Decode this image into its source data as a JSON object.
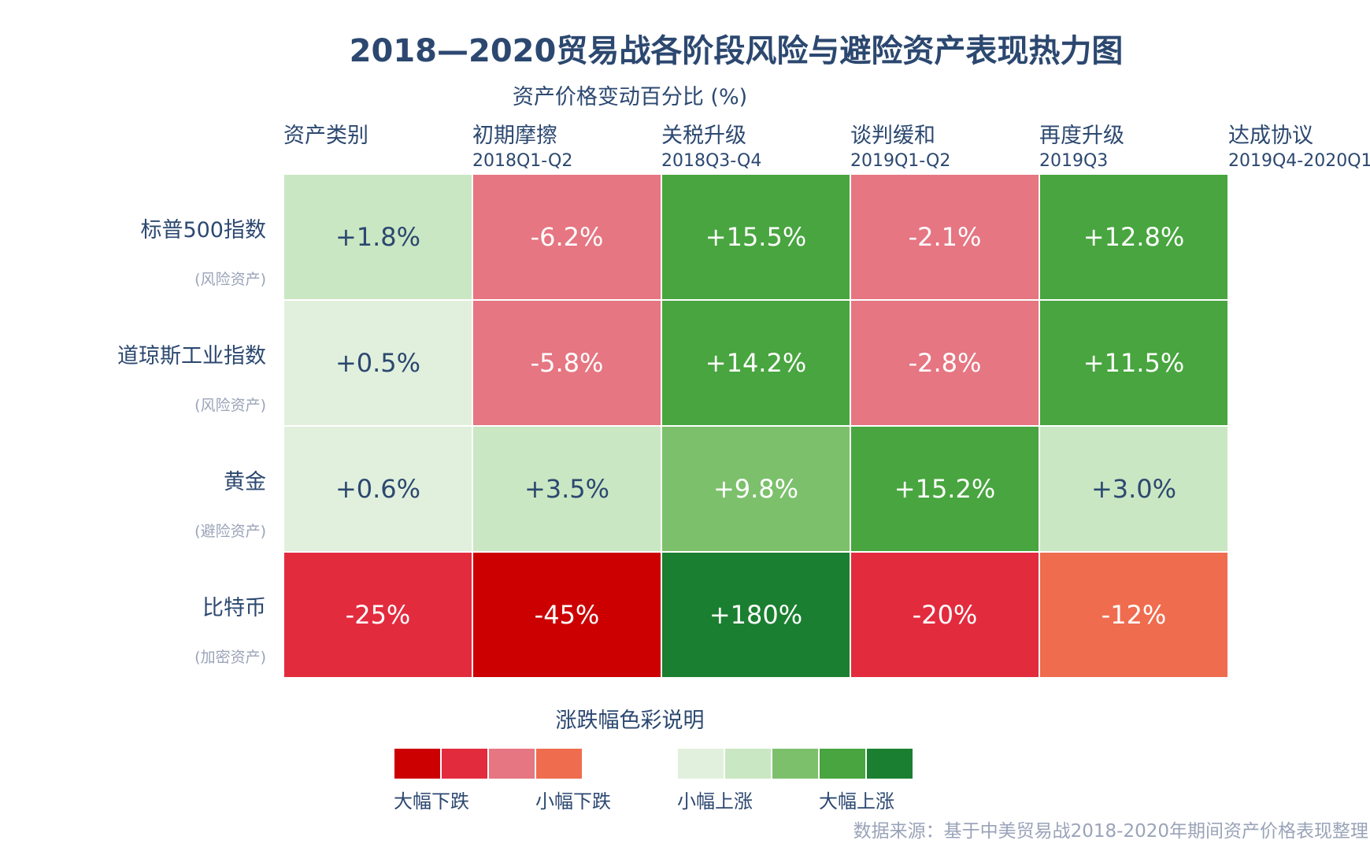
{
  "chart_data": {
    "type": "heatmap",
    "title": "2018—2020贸易战各阶段风险与避险资产表现热力图",
    "subtitle": "资产价格变动百分比 (%)",
    "row_header": "资产类别",
    "columns": [
      {
        "name": "初期摩擦",
        "period": "2018Q1-Q2"
      },
      {
        "name": "关税升级",
        "period": "2018Q3-Q4"
      },
      {
        "name": "谈判缓和",
        "period": "2019Q1-Q2"
      },
      {
        "name": "再度升级",
        "period": "2019Q3"
      },
      {
        "name": "达成协议",
        "period": "2019Q4-2020Q1"
      }
    ],
    "rows": [
      {
        "name": "标普500指数",
        "type": "(风险资产)",
        "values": [
          1.8,
          -6.2,
          15.5,
          -2.1,
          12.8
        ],
        "labels": [
          "+1.8%",
          "-6.2%",
          "+15.5%",
          "-2.1%",
          "+12.8%"
        ]
      },
      {
        "name": "道琼斯工业指数",
        "type": "(风险资产)",
        "values": [
          0.5,
          -5.8,
          14.2,
          -2.8,
          11.5
        ],
        "labels": [
          "+0.5%",
          "-5.8%",
          "+14.2%",
          "-2.8%",
          "+11.5%"
        ]
      },
      {
        "name": "黄金",
        "type": "(避险资产)",
        "values": [
          0.6,
          3.5,
          9.8,
          15.2,
          3.0
        ],
        "labels": [
          "+0.6%",
          "+3.5%",
          "+9.8%",
          "+15.2%",
          "+3.0%"
        ]
      },
      {
        "name": "比特币",
        "type": "(加密资产)",
        "values": [
          -25,
          -45,
          180,
          -20,
          -12
        ],
        "labels": [
          "-25%",
          "-45%",
          "+180%",
          "-20%",
          "-12%"
        ]
      }
    ],
    "legend": {
      "title": "涨跌幅色彩说明",
      "down_colors": [
        "#cc0000",
        "#e32b3e",
        "#e57682",
        "#ef6c4f"
      ],
      "up_colors": [
        "#e1f0dc",
        "#cae7c3",
        "#7cc06c",
        "#48a53f",
        "#1a7f30"
      ],
      "labels": [
        "大幅下跌",
        "小幅下跌",
        "小幅上涨",
        "大幅上涨"
      ]
    },
    "source": "数据来源：基于中美贸易战2018-2020年期间资产价格表现整理"
  },
  "colors": {
    "text": "#2c4870",
    "muted": "#9aa3b8",
    "big_down": "#cc0000",
    "down": "#e32b3e",
    "small_down": "#e57682",
    "moderate_down": "#ef6c4f",
    "tiny_up": "#e1f0dc",
    "small_up": "#cae7c3",
    "mid_up": "#7cc06c",
    "big_up": "#48a53f",
    "huge_up": "#1a7f30"
  }
}
